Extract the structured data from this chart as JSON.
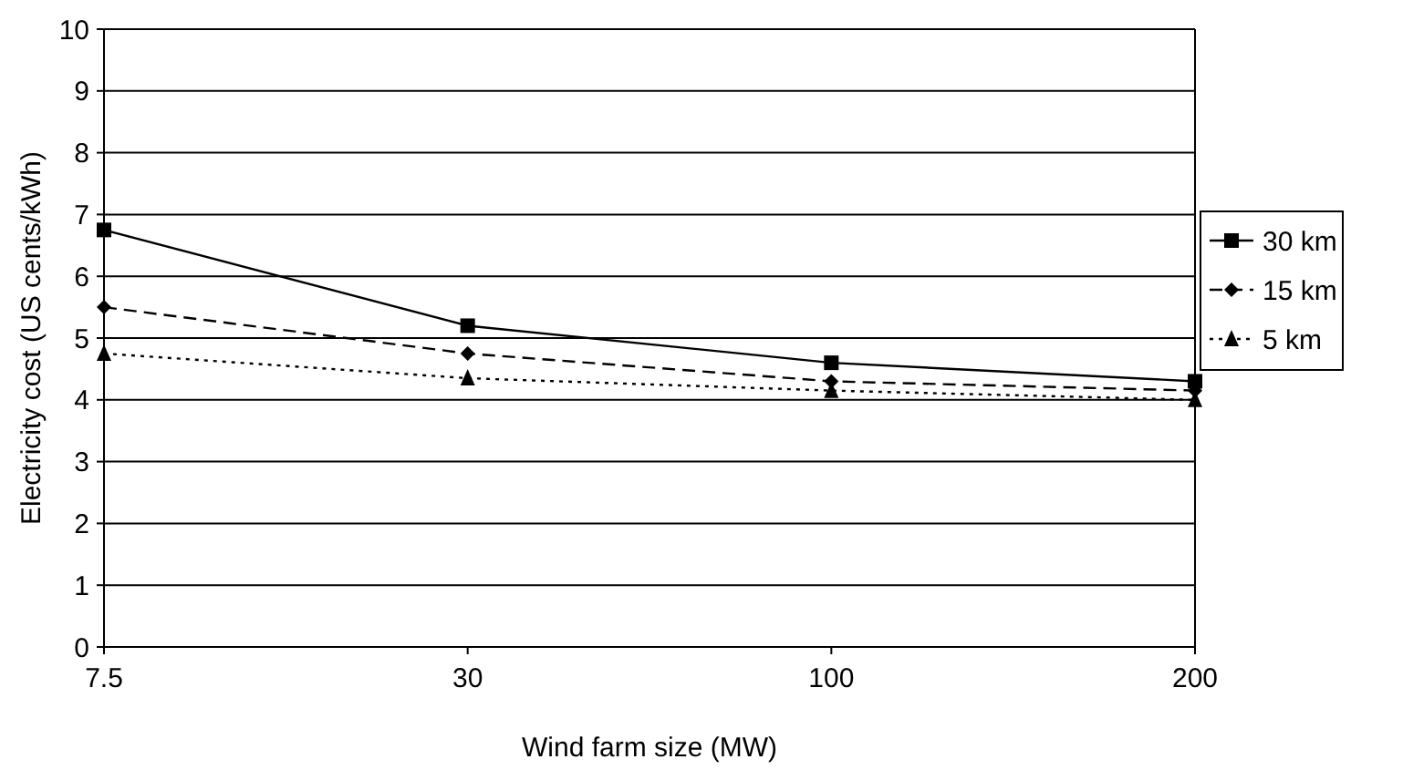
{
  "chart_data": {
    "type": "line",
    "xlabel": "Wind farm size (MW)",
    "ylabel": "Electricity cost (US cents/kWh)",
    "categories": [
      "7.5",
      "30",
      "100",
      "200"
    ],
    "ylim": [
      0,
      10
    ],
    "yticks": [
      0,
      1,
      2,
      3,
      4,
      5,
      6,
      7,
      8,
      9,
      10
    ],
    "grid": "y",
    "legend": "right",
    "series": [
      {
        "name": "30 km",
        "color": "#000000",
        "values": [
          6.75,
          5.2,
          4.6,
          4.3
        ],
        "marker": "square",
        "line_style": "solid"
      },
      {
        "name": "15 km",
        "color": "#000000",
        "values": [
          5.5,
          4.75,
          4.3,
          4.15
        ],
        "marker": "diamond",
        "line_style": "dashed"
      },
      {
        "name": "5 km",
        "color": "#000000",
        "values": [
          4.75,
          4.35,
          4.15,
          4.0
        ],
        "marker": "triangle",
        "line_style": "dotted"
      }
    ]
  }
}
